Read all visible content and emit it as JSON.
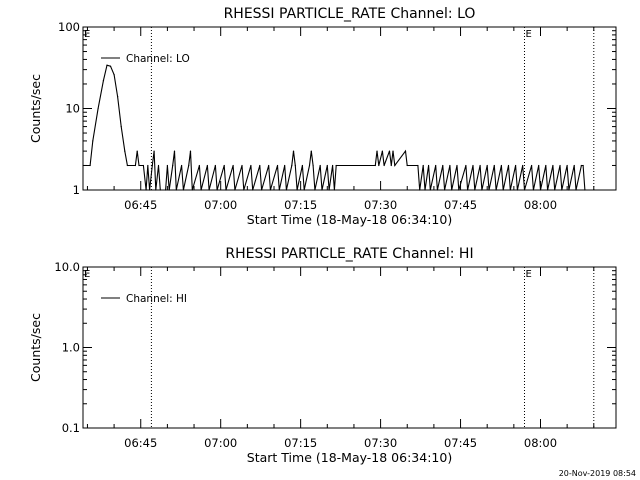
{
  "chart_data": [
    {
      "type": "line",
      "title": "RHESSI PARTICLE_RATE Channel: LO",
      "xlabel": "Start Time (18-May-18 06:34:10)",
      "ylabel": "Counts/sec",
      "y_scale": "log",
      "ylim": [
        1,
        100
      ],
      "y_ticks": [
        1,
        10,
        100
      ],
      "y_tick_labels": [
        "1",
        "10",
        "100"
      ],
      "xlim": [
        "06:34:10",
        "08:14:10"
      ],
      "x_ticks": [
        "06:45",
        "07:00",
        "07:15",
        "07:30",
        "07:45",
        "08:00"
      ],
      "markers": [
        {
          "time": "06:47:00",
          "label": ""
        },
        {
          "time": "07:57:00",
          "label": "E"
        },
        {
          "time": "08:10:00",
          "label": ""
        }
      ],
      "start_label": "E",
      "legend": "top-left",
      "series": [
        {
          "name": "Channel: LO",
          "points": [
            [
              "06:34:10",
              2
            ],
            [
              "06:35:30",
              2
            ],
            [
              "06:36:00",
              4
            ],
            [
              "06:37:00",
              10
            ],
            [
              "06:38:00",
              22
            ],
            [
              "06:38:40",
              34
            ],
            [
              "06:39:20",
              33
            ],
            [
              "06:40:00",
              26
            ],
            [
              "06:40:40",
              14
            ],
            [
              "06:41:20",
              6
            ],
            [
              "06:42:00",
              3
            ],
            [
              "06:42:30",
              2
            ],
            [
              "06:44:00",
              2
            ],
            [
              "06:44:20",
              3
            ],
            [
              "06:44:40",
              2
            ],
            [
              "06:45:30",
              2
            ],
            [
              "06:46:00",
              1
            ],
            [
              "06:46:20",
              2
            ],
            [
              "06:46:40",
              1
            ],
            [
              "06:47:10",
              2
            ],
            [
              "06:47:30",
              3
            ],
            [
              "06:47:50",
              1
            ],
            [
              "06:48:20",
              2
            ],
            [
              "06:48:40",
              1
            ],
            [
              "06:49:40",
              1
            ],
            [
              "06:50:00",
              2
            ],
            [
              "06:50:20",
              1
            ],
            [
              "06:51:00",
              2
            ],
            [
              "06:51:20",
              3
            ],
            [
              "06:51:40",
              1
            ],
            [
              "06:52:40",
              2
            ],
            [
              "06:53:00",
              1
            ],
            [
              "06:54:00",
              2
            ],
            [
              "06:54:20",
              3
            ],
            [
              "06:54:40",
              1
            ],
            [
              "06:56:00",
              2
            ],
            [
              "06:56:20",
              1
            ],
            [
              "06:57:30",
              2
            ],
            [
              "06:57:50",
              1
            ],
            [
              "06:59:00",
              2
            ],
            [
              "06:59:20",
              1
            ],
            [
              "07:00:40",
              2
            ],
            [
              "07:01:00",
              1
            ],
            [
              "07:02:20",
              2
            ],
            [
              "07:02:40",
              1
            ],
            [
              "07:04:00",
              2
            ],
            [
              "07:04:20",
              1
            ],
            [
              "07:05:40",
              2
            ],
            [
              "07:06:00",
              1
            ],
            [
              "07:07:20",
              2
            ],
            [
              "07:07:40",
              1
            ],
            [
              "07:09:00",
              2
            ],
            [
              "07:09:20",
              1
            ],
            [
              "07:10:40",
              2
            ],
            [
              "07:11:00",
              1
            ],
            [
              "07:12:00",
              2
            ],
            [
              "07:12:20",
              1
            ],
            [
              "07:13:20",
              2
            ],
            [
              "07:13:40",
              3
            ],
            [
              "07:14:00",
              2
            ],
            [
              "07:14:20",
              1
            ],
            [
              "07:15:20",
              2
            ],
            [
              "07:15:40",
              1
            ],
            [
              "07:16:40",
              2
            ],
            [
              "07:17:00",
              3
            ],
            [
              "07:17:20",
              2
            ],
            [
              "07:17:40",
              1
            ],
            [
              "07:18:40",
              2
            ],
            [
              "07:19:00",
              1
            ],
            [
              "07:20:00",
              2
            ],
            [
              "07:20:20",
              1
            ],
            [
              "07:21:00",
              2
            ],
            [
              "07:21:20",
              1
            ],
            [
              "07:21:40",
              2
            ],
            [
              "07:29:00",
              2
            ],
            [
              "07:29:20",
              3
            ],
            [
              "07:29:40",
              2
            ],
            [
              "07:30:20",
              3
            ],
            [
              "07:30:40",
              2
            ],
            [
              "07:31:40",
              3
            ],
            [
              "07:32:00",
              2
            ],
            [
              "07:32:20",
              3
            ],
            [
              "07:32:40",
              2
            ],
            [
              "07:34:40",
              3
            ],
            [
              "07:35:00",
              2
            ],
            [
              "07:37:00",
              2
            ],
            [
              "07:37:20",
              1
            ],
            [
              "07:38:00",
              2
            ],
            [
              "07:38:20",
              1
            ],
            [
              "07:39:00",
              2
            ],
            [
              "07:39:20",
              1
            ],
            [
              "07:40:20",
              2
            ],
            [
              "07:40:40",
              1
            ],
            [
              "07:41:40",
              2
            ],
            [
              "07:42:00",
              1
            ],
            [
              "07:43:00",
              2
            ],
            [
              "07:43:20",
              1
            ],
            [
              "07:44:20",
              2
            ],
            [
              "07:44:40",
              1
            ],
            [
              "07:46:00",
              2
            ],
            [
              "07:46:20",
              1
            ],
            [
              "07:47:20",
              2
            ],
            [
              "07:47:40",
              1
            ],
            [
              "07:48:40",
              2
            ],
            [
              "07:49:00",
              1
            ],
            [
              "07:50:00",
              2
            ],
            [
              "07:50:20",
              1
            ],
            [
              "07:51:20",
              2
            ],
            [
              "07:51:40",
              1
            ],
            [
              "07:52:40",
              2
            ],
            [
              "07:53:00",
              1
            ],
            [
              "07:54:00",
              2
            ],
            [
              "07:54:20",
              1
            ],
            [
              "07:55:20",
              2
            ],
            [
              "07:55:40",
              1
            ],
            [
              "07:56:40",
              2
            ],
            [
              "07:57:00",
              1
            ],
            [
              "07:58:20",
              2
            ],
            [
              "07:58:40",
              1
            ],
            [
              "07:59:40",
              2
            ],
            [
              "08:00:00",
              1
            ],
            [
              "08:01:00",
              2
            ],
            [
              "08:01:20",
              1
            ],
            [
              "08:02:20",
              2
            ],
            [
              "08:02:40",
              1
            ],
            [
              "08:03:40",
              2
            ],
            [
              "08:04:00",
              1
            ],
            [
              "08:05:00",
              2
            ],
            [
              "08:05:20",
              1
            ],
            [
              "08:06:20",
              2
            ],
            [
              "08:06:40",
              1
            ],
            [
              "08:07:40",
              2
            ],
            [
              "08:08:00",
              2
            ],
            [
              "08:08:20",
              1
            ]
          ]
        }
      ]
    },
    {
      "type": "line",
      "title": "RHESSI PARTICLE_RATE Channel: HI",
      "xlabel": "Start Time (18-May-18 06:34:10)",
      "ylabel": "Counts/sec",
      "y_scale": "log",
      "ylim": [
        0.1,
        10
      ],
      "y_ticks": [
        0.1,
        1,
        10
      ],
      "y_tick_labels": [
        "0.1",
        "1.0",
        "10.0"
      ],
      "xlim": [
        "06:34:10",
        "08:14:10"
      ],
      "x_ticks": [
        "06:45",
        "07:00",
        "07:15",
        "07:30",
        "07:45",
        "08:00"
      ],
      "markers": [
        {
          "time": "06:47:00",
          "label": ""
        },
        {
          "time": "07:57:00",
          "label": "E"
        },
        {
          "time": "08:10:00",
          "label": ""
        }
      ],
      "start_label": "E",
      "legend": "top-left",
      "series": [
        {
          "name": "Channel: HI",
          "points": []
        }
      ]
    }
  ],
  "footer": {
    "timestamp": "20-Nov-2019 08:54"
  }
}
